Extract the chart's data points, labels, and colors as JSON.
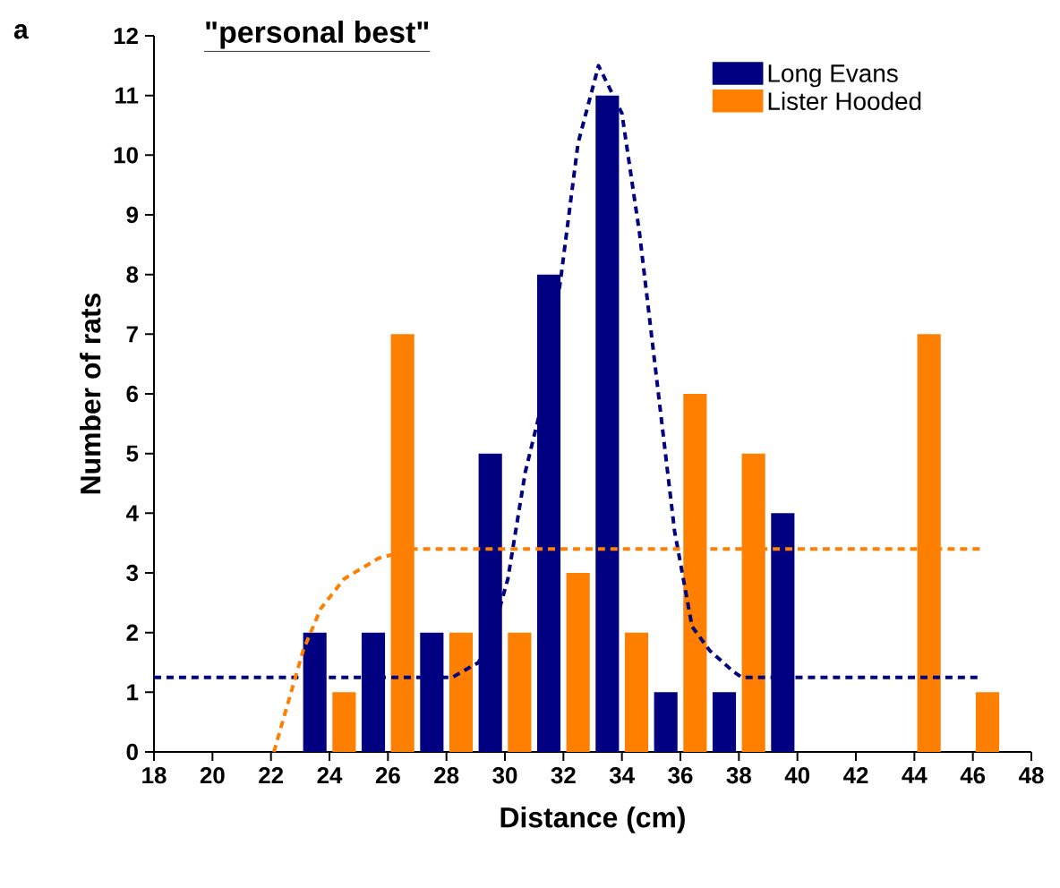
{
  "chart_data": {
    "type": "bar",
    "title": "\"personal best\"",
    "xlabel": "Distance (cm)",
    "ylabel": "Number of rats",
    "annotations": [
      "a"
    ],
    "x": [
      24,
      26,
      28,
      30,
      32,
      34,
      36,
      38,
      40,
      42,
      44,
      46
    ],
    "series": [
      {
        "name": "Long Evans",
        "color": "#000080",
        "values": [
          2,
          2,
          2,
          5,
          8,
          11,
          1,
          1,
          4,
          0,
          0,
          0
        ]
      },
      {
        "name": "Lister Hooded",
        "color": "#ff8000",
        "values": [
          1,
          7,
          2,
          2,
          3,
          2,
          6,
          5,
          0,
          0,
          7,
          1
        ]
      },
      {
        "type": "line",
        "color": "#000080",
        "line_style": "dashed",
        "x": [
          18,
          28.2,
          29.1,
          29.7,
          30.1,
          30.7,
          31.3,
          31.9,
          32.5,
          33.2,
          34,
          34.6,
          35.2,
          35.8,
          36.4,
          37,
          37.8,
          38.1,
          46.3
        ],
        "values": [
          1.25,
          1.25,
          1.5,
          2.2,
          2.9,
          4.7,
          5.9,
          7.9,
          10.2,
          11.5,
          10.7,
          8.7,
          6.2,
          3.7,
          2.1,
          1.7,
          1.35,
          1.25,
          1.25
        ]
      },
      {
        "type": "line",
        "color": "#ff8000",
        "line_style": "dashed",
        "x": [
          22.1,
          23.1,
          23.7,
          24.5,
          25.7,
          26.9,
          46.3
        ],
        "values": [
          0,
          1.7,
          2.4,
          2.9,
          3.25,
          3.4,
          3.4
        ]
      }
    ],
    "xlim": [
      18,
      48
    ],
    "xticks": [
      18,
      20,
      22,
      24,
      26,
      28,
      30,
      32,
      34,
      36,
      38,
      40,
      42,
      44,
      46,
      48
    ],
    "ylim": [
      0,
      12
    ],
    "yticks": [
      0,
      1,
      2,
      3,
      4,
      5,
      6,
      7,
      8,
      9,
      10,
      11,
      12
    ],
    "legend": "top right"
  }
}
